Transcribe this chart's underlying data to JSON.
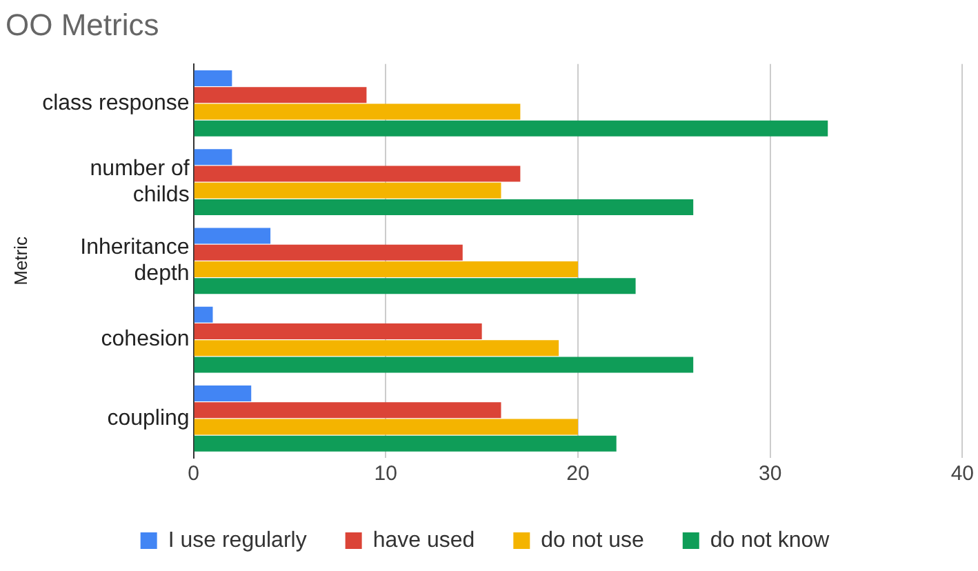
{
  "chart_data": {
    "type": "bar",
    "orientation": "horizontal",
    "title": "OO Metrics",
    "ylabel": "Metric",
    "categories": [
      "class response",
      "number of childs",
      "Inheritance depth",
      "cohesion",
      "coupling"
    ],
    "series": [
      {
        "name": "I use regularly",
        "color": "#4285f4",
        "values": [
          2,
          2,
          4,
          1,
          3
        ]
      },
      {
        "name": "have used",
        "color": "#db4437",
        "values": [
          9,
          17,
          14,
          15,
          16
        ]
      },
      {
        "name": "do not use",
        "color": "#f4b400",
        "values": [
          17,
          16,
          20,
          19,
          20
        ]
      },
      {
        "name": "do not know",
        "color": "#0f9d58",
        "values": [
          33,
          26,
          23,
          26,
          22
        ]
      }
    ],
    "xlim": [
      0,
      40
    ],
    "xticks": [
      0,
      10,
      20,
      30,
      40
    ],
    "grid": "x",
    "legend": "bottom"
  }
}
